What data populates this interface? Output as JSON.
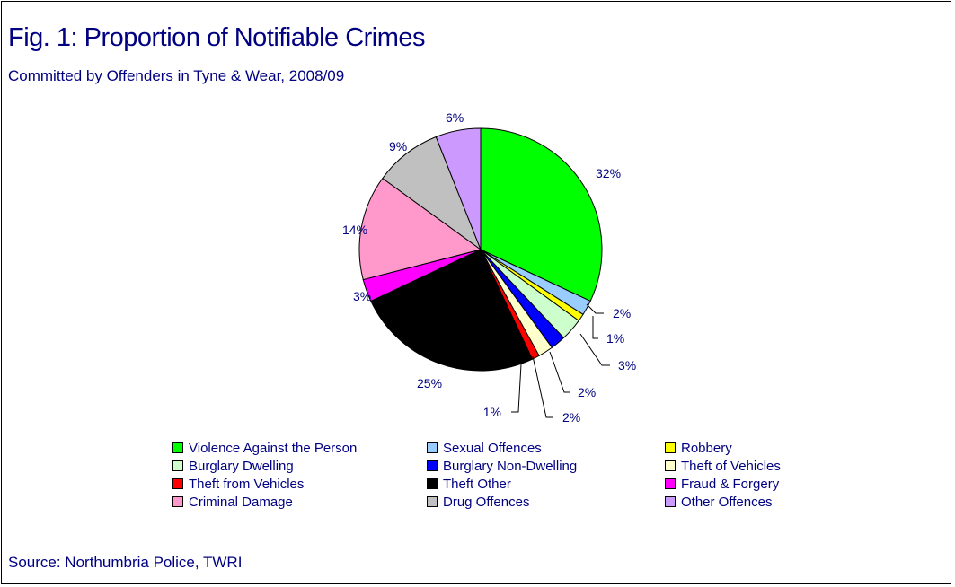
{
  "title": "Fig. 1: Proportion of Notifiable Crimes",
  "subtitle": "Committed by Offenders in Tyne & Wear, 2008/09",
  "source": "Source: Northumbria Police, TWRI",
  "chart_data": {
    "type": "pie",
    "title": "Fig. 1: Proportion of Notifiable Crimes",
    "subtitle": "Committed by Offenders in Tyne & Wear, 2008/09",
    "legend_position": "bottom",
    "start": "12 o'clock, clockwise",
    "slices": [
      {
        "label": "Violence Against the Person",
        "value": 32,
        "display": "32%",
        "color": "#00ff00"
      },
      {
        "label": "Sexual Offences",
        "value": 2,
        "display": "2%",
        "color": "#99ccff"
      },
      {
        "label": "Robbery",
        "value": 1,
        "display": "1%",
        "color": "#ffff00"
      },
      {
        "label": "Burglary Dwelling",
        "value": 3,
        "display": "3%",
        "color": "#ccffcc"
      },
      {
        "label": "Burglary Non-Dwelling",
        "value": 2,
        "display": "2%",
        "color": "#0000ff"
      },
      {
        "label": "Theft of Vehicles",
        "value": 2,
        "display": "2%",
        "color": "#ffffcc"
      },
      {
        "label": "Theft from Vehicles",
        "value": 1,
        "display": "1%",
        "color": "#ff0000"
      },
      {
        "label": "Theft Other",
        "value": 25,
        "display": "25%",
        "color": "#000000"
      },
      {
        "label": "Fraud & Forgery",
        "value": 3,
        "display": "3%",
        "color": "#ff00ff"
      },
      {
        "label": "Criminal Damage",
        "value": 14,
        "display": "14%",
        "color": "#ff99cc"
      },
      {
        "label": "Drug Offences",
        "value": 9,
        "display": "9%",
        "color": "#c0c0c0"
      },
      {
        "label": "Other Offences",
        "value": 6,
        "display": "6%",
        "color": "#cc99ff"
      }
    ]
  }
}
